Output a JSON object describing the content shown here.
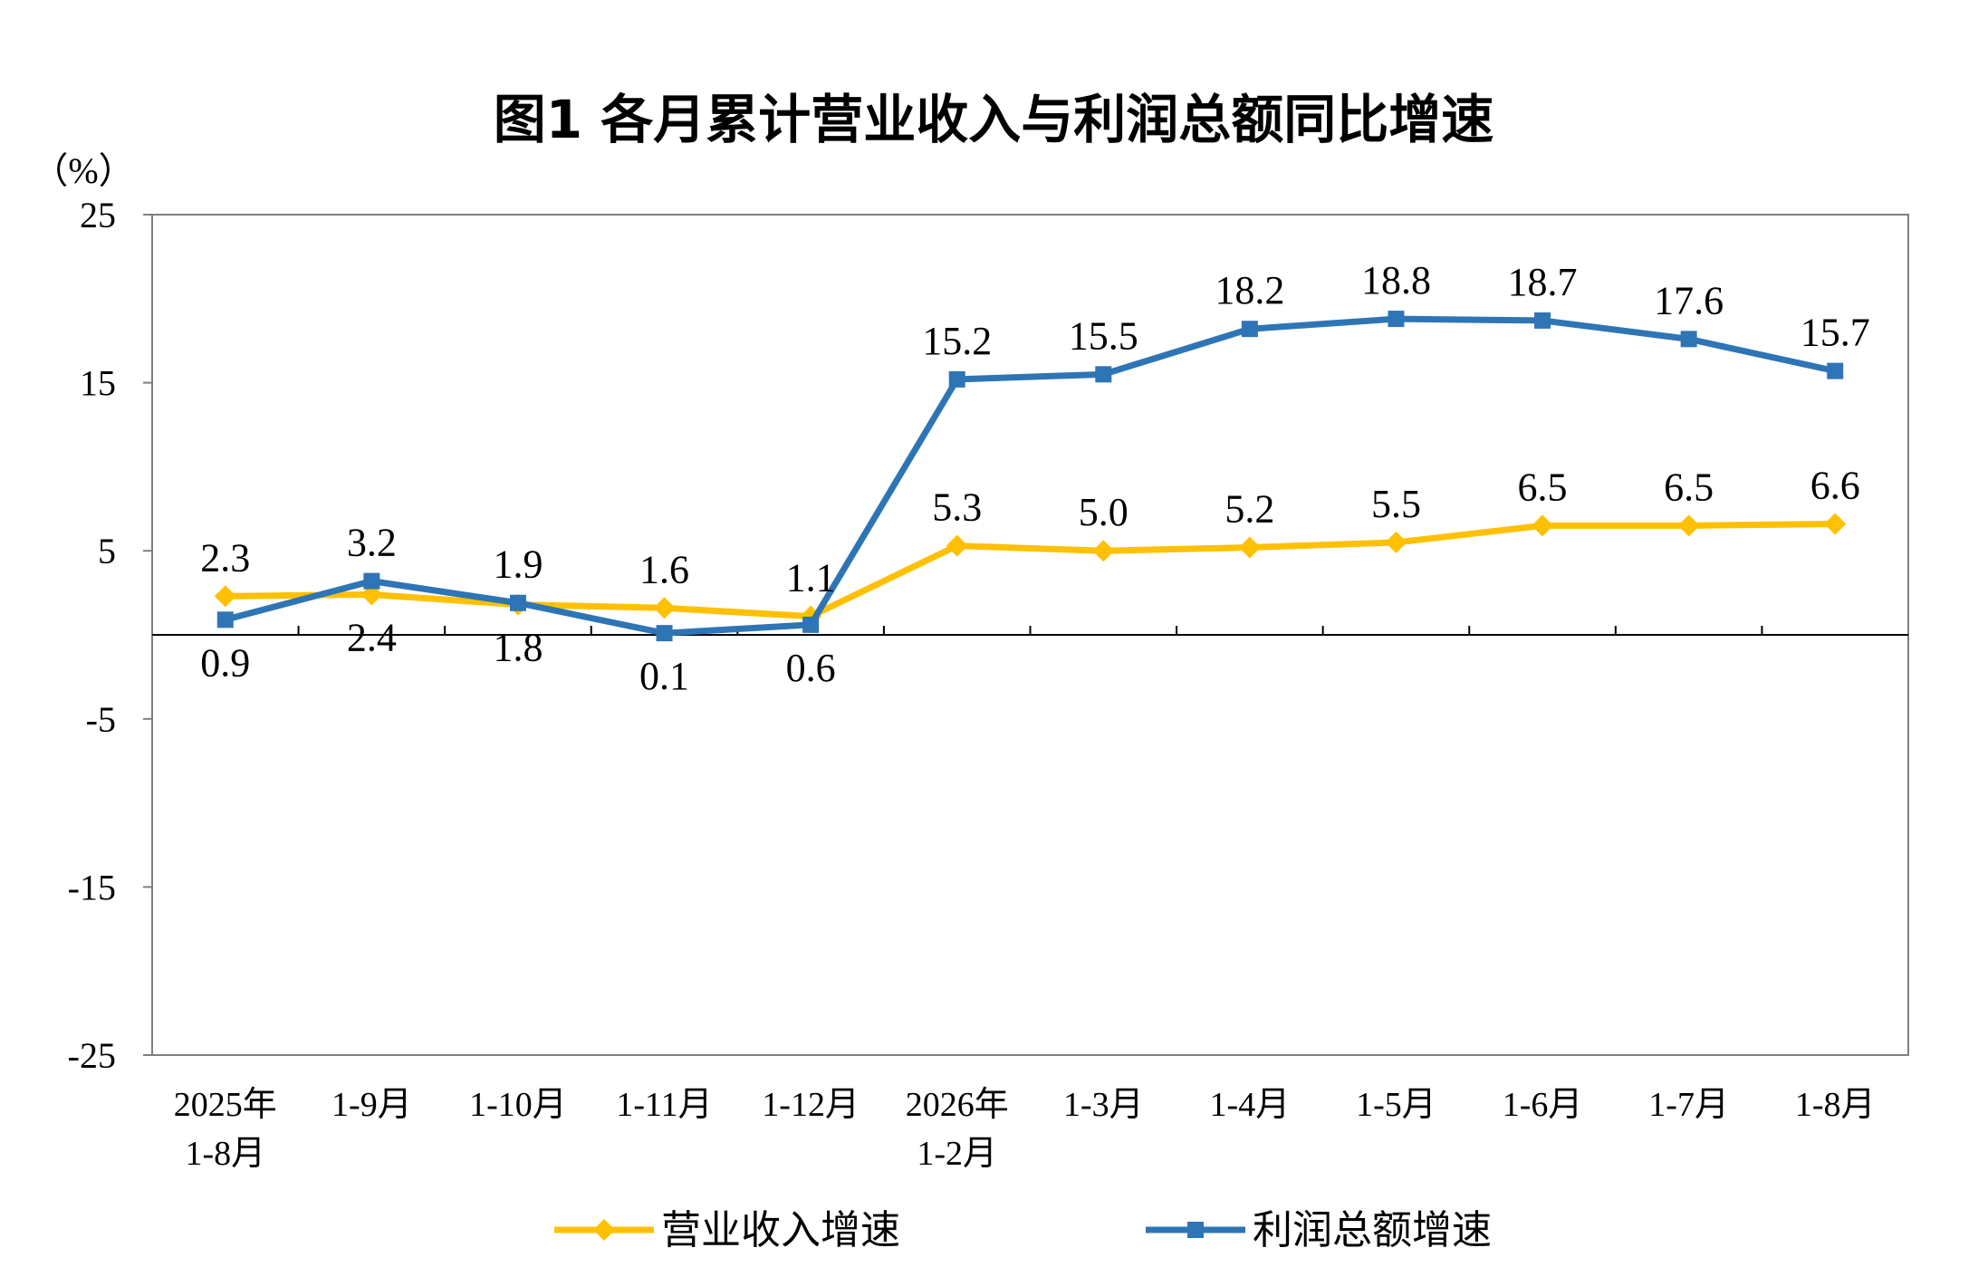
{
  "chart_data": {
    "type": "line",
    "title": "图1  各月累计营业收入与利润总额同比增速",
    "unit_label": "（%）",
    "categories": [
      [
        "2025年",
        "1-8月"
      ],
      [
        "1-9月"
      ],
      [
        "1-10月"
      ],
      [
        "1-11月"
      ],
      [
        "1-12月"
      ],
      [
        "2026年",
        "1-2月"
      ],
      [
        "1-3月"
      ],
      [
        "1-4月"
      ],
      [
        "1-5月"
      ],
      [
        "1-6月"
      ],
      [
        "1-7月"
      ],
      [
        "1-8月"
      ]
    ],
    "ylim": [
      -25,
      25
    ],
    "yticks": [
      25,
      15,
      5,
      -5,
      -15,
      -25
    ],
    "series": [
      {
        "name": "营业收入增速",
        "color": "#FFC000",
        "marker": "diamond",
        "values": [
          2.3,
          2.4,
          1.8,
          1.6,
          1.1,
          5.3,
          5.0,
          5.2,
          5.5,
          6.5,
          6.5,
          6.6
        ],
        "labels": [
          "2.3",
          "2.4",
          "1.8",
          "1.6",
          "1.1",
          "5.3",
          "5.0",
          "5.2",
          "5.5",
          "6.5",
          "6.5",
          "6.6"
        ],
        "label_side": [
          "above",
          "below",
          "below",
          "above",
          "above",
          "above",
          "above",
          "above",
          "above",
          "above",
          "above",
          "above"
        ]
      },
      {
        "name": "利润总额增速",
        "color": "#2E75B6",
        "marker": "square",
        "values": [
          0.9,
          3.2,
          1.9,
          0.1,
          0.6,
          15.2,
          15.5,
          18.2,
          18.8,
          18.7,
          17.6,
          15.7
        ],
        "labels": [
          "0.9",
          "3.2",
          "1.9",
          "0.1",
          "0.6",
          "15.2",
          "15.5",
          "18.2",
          "18.8",
          "18.7",
          "17.6",
          "15.7"
        ],
        "label_side": [
          "below",
          "above",
          "above",
          "below",
          "below",
          "above",
          "above",
          "above",
          "above",
          "above",
          "above",
          "above"
        ]
      }
    ],
    "grid": false,
    "legend_position": "bottom-center"
  }
}
